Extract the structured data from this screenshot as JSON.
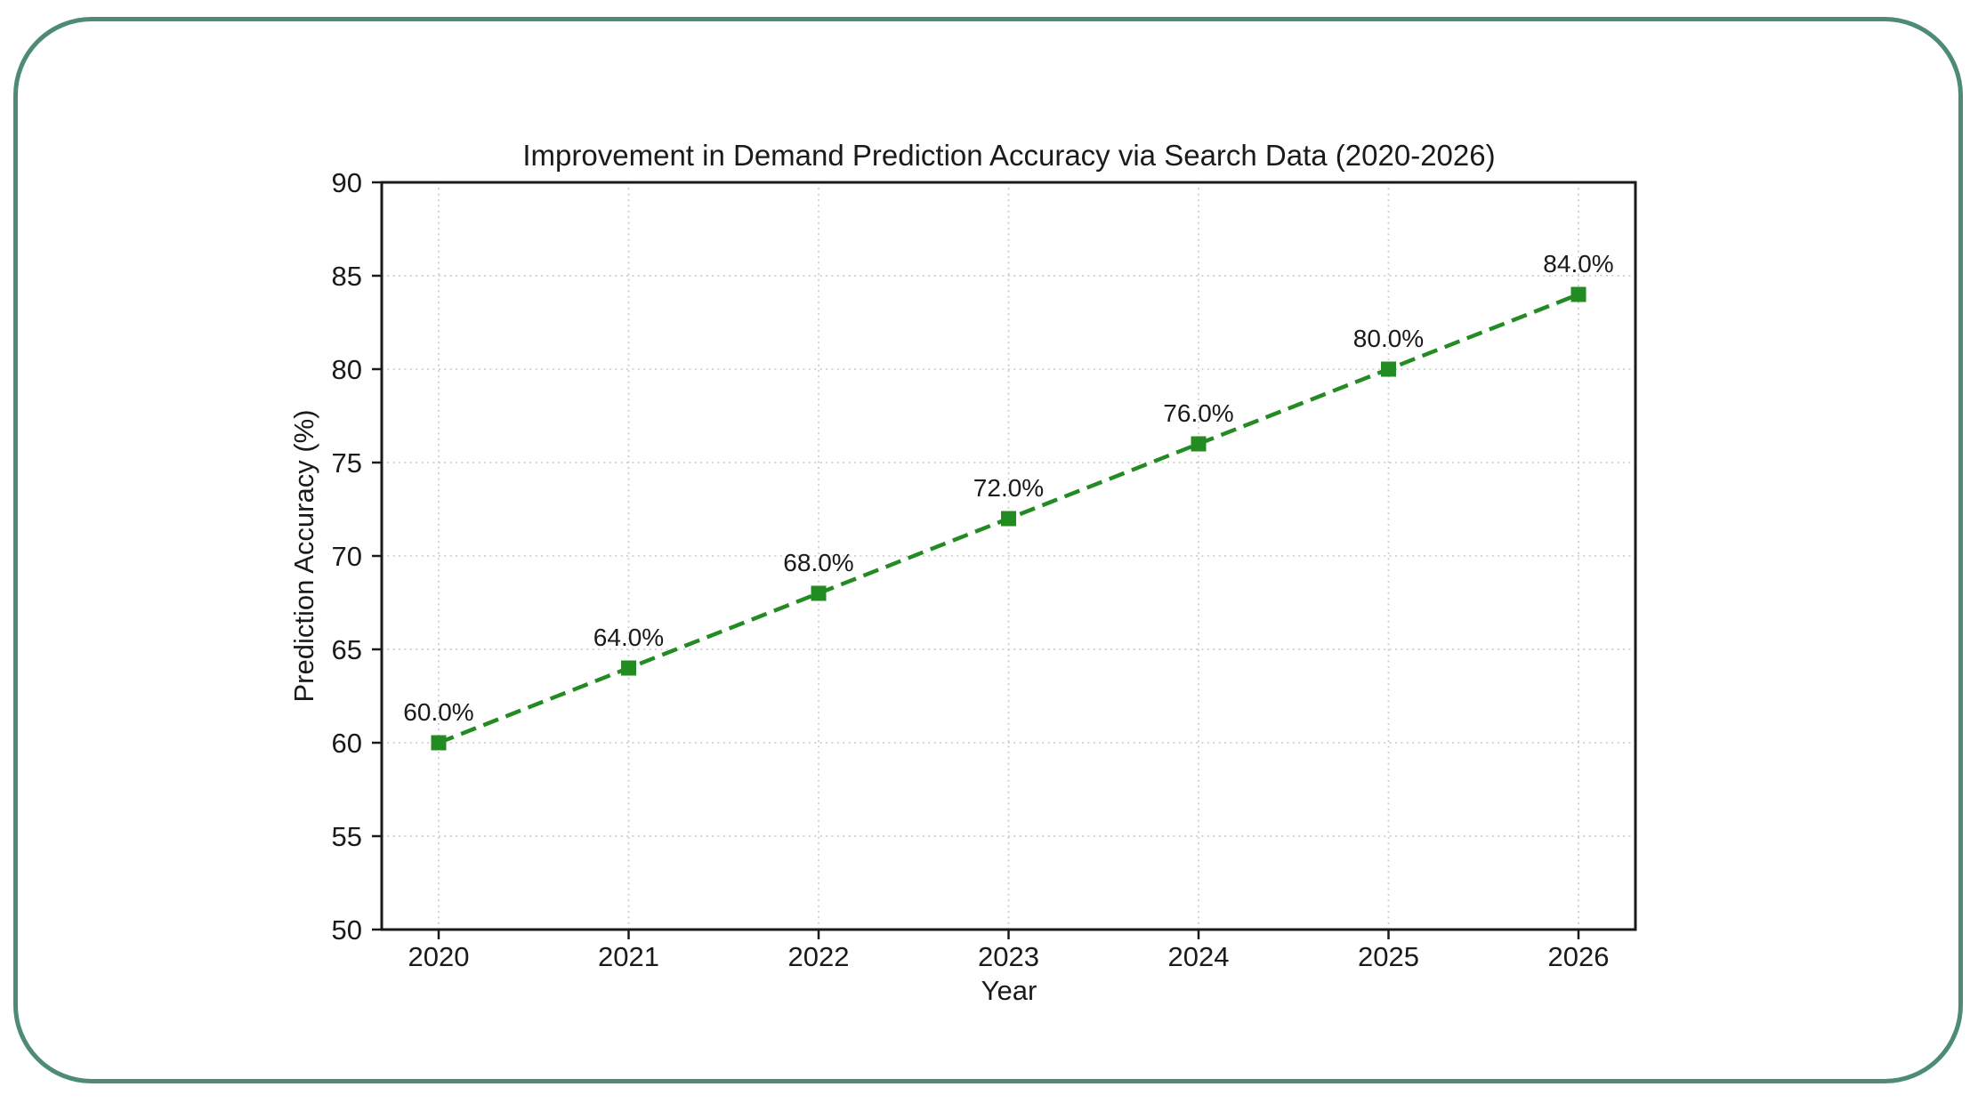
{
  "frame": {
    "border_color": "#4e8a78",
    "background_color": "#ffffff"
  },
  "chart_data": {
    "type": "line",
    "title": "Improvement in Demand Prediction Accuracy via Search Data (2020-2026)",
    "xlabel": "Year",
    "ylabel": "Prediction Accuracy (%)",
    "categories": [
      "2020",
      "2021",
      "2022",
      "2023",
      "2024",
      "2025",
      "2026"
    ],
    "series": [
      {
        "name": "Prediction Accuracy",
        "values": [
          60.0,
          64.0,
          68.0,
          72.0,
          76.0,
          80.0,
          84.0
        ],
        "point_labels": [
          "60.0%",
          "64.0%",
          "68.0%",
          "72.0%",
          "76.0%",
          "80.0%",
          "84.0%"
        ]
      }
    ],
    "ylim": [
      50,
      90
    ],
    "yticks": [
      50,
      55,
      60,
      65,
      70,
      75,
      80,
      85,
      90
    ],
    "line_color": "#228B22",
    "marker_color": "#228B22",
    "line_style": "dashed",
    "marker": "square",
    "grid": "dotted",
    "grid_color": "#c9c9c9",
    "axis_color": "#1a1a1a",
    "legend": "none"
  }
}
